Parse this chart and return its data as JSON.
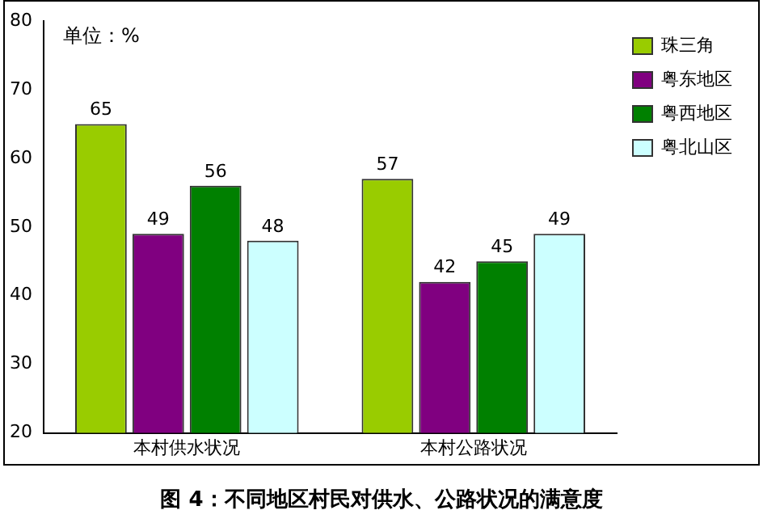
{
  "chart_data": {
    "type": "bar",
    "categories": [
      "本村供水状况",
      "本村公路状况"
    ],
    "series": [
      {
        "name": "珠三角",
        "color": "#99cc00",
        "values": [
          65,
          57
        ]
      },
      {
        "name": "粤东地区",
        "color": "#800080",
        "values": [
          49,
          42
        ]
      },
      {
        "name": "粤西地区",
        "color": "#008000",
        "values": [
          56,
          45
        ]
      },
      {
        "name": "粤北山区",
        "color": "#ccffff",
        "values": [
          48,
          49
        ]
      }
    ],
    "ylim": [
      20,
      80
    ],
    "yticks": [
      20,
      30,
      40,
      50,
      60,
      70,
      80
    ],
    "data_labels": true,
    "legend": "top right",
    "grid": false,
    "annotations": [
      "单位：%",
      "图 4：不同地区村民对供水、公路状况的满意度"
    ]
  }
}
